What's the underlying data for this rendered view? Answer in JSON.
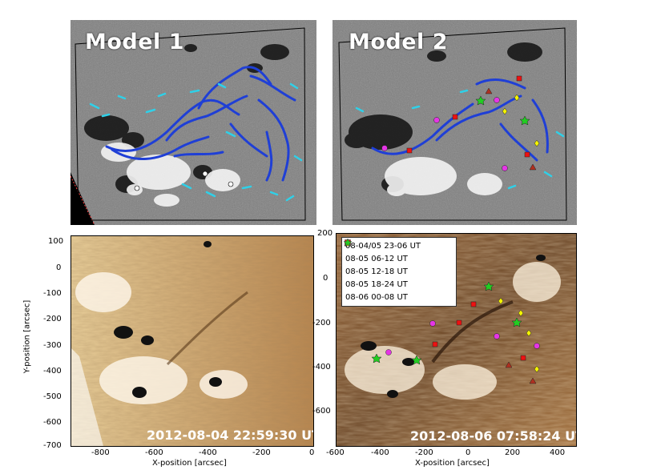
{
  "top_left": {
    "title": "Model 1"
  },
  "top_right": {
    "title": "Model 2"
  },
  "bottom_left": {
    "timestamp": "2012-08-04 22:59:30 UT",
    "xlabel": "X-position [arcsec]",
    "ylabel": "Y-position [arcsec]",
    "xticks": [
      "-800",
      "-600",
      "-400",
      "-200",
      "0"
    ],
    "yticks": [
      "100",
      "0",
      "-100",
      "-200",
      "-300",
      "-400",
      "-500",
      "-600",
      "-700"
    ]
  },
  "bottom_right": {
    "timestamp": "2012-08-06 07:58:24 UT",
    "xlabel": "X-position [arcsec]",
    "xticks": [
      "-600",
      "-400",
      "-200",
      "0",
      "200",
      "400"
    ],
    "yticks": [
      "200",
      "0",
      "-200",
      "-400",
      "-600"
    ],
    "legend": [
      {
        "label": "08-04/05 23-06 UT",
        "marker": "circle",
        "color": "#e535e5"
      },
      {
        "label": "08-05 06-12 UT",
        "marker": "square",
        "color": "#ee1111"
      },
      {
        "label": "08-05 12-18 UT",
        "marker": "triangle",
        "color": "#b03020"
      },
      {
        "label": "08-05 18-24 UT",
        "marker": "diamond",
        "color": "#f5f500"
      },
      {
        "label": "08-06 00-08 UT",
        "marker": "star",
        "color": "#22cc22"
      }
    ]
  },
  "colors": {
    "magnetogram_bg": "#7f7f7f",
    "euv_light": "#d9b584",
    "euv_dark": "#6b4626",
    "model_line_blue": "#1f3fd6",
    "model_line_cyan": "#2fd0e8"
  }
}
